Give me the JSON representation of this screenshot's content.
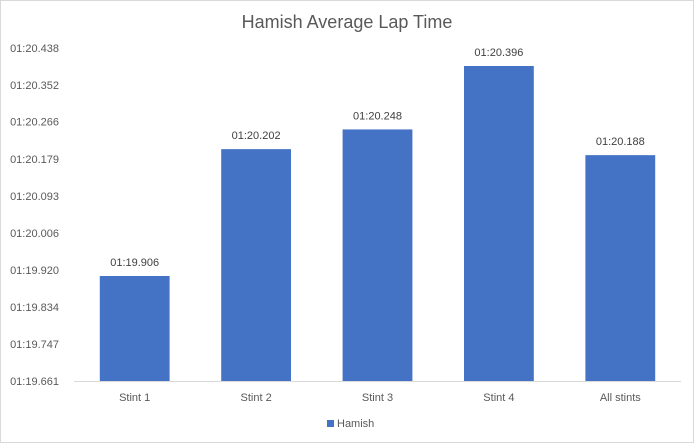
{
  "chart_data": {
    "type": "bar",
    "title": "Hamish Average Lap Time",
    "xlabel": "",
    "ylabel": "",
    "categories": [
      "Stint 1",
      "Stint 2",
      "Stint 3",
      "Stint 4",
      "All stints"
    ],
    "series": [
      {
        "name": "Hamish",
        "color": "#4472c4",
        "values": [
          79.906,
          80.202,
          80.248,
          80.396,
          80.188
        ],
        "labels": [
          "01:19.906",
          "01:20.202",
          "01:20.248",
          "01:20.396",
          "01:20.188"
        ]
      }
    ],
    "ylim": [
      79.661,
      80.438
    ],
    "y_ticks": [
      79.661,
      79.747,
      79.834,
      79.92,
      80.006,
      80.093,
      80.179,
      80.266,
      80.352,
      80.438
    ],
    "y_tick_labels": [
      "01:19.661",
      "01:19.747",
      "01:19.834",
      "01:19.920",
      "01:20.006",
      "01:20.093",
      "01:20.179",
      "01:20.266",
      "01:20.352",
      "01:20.438"
    ],
    "grid": false,
    "legend": "bottom",
    "baseline_color": "#d9d9d9"
  }
}
